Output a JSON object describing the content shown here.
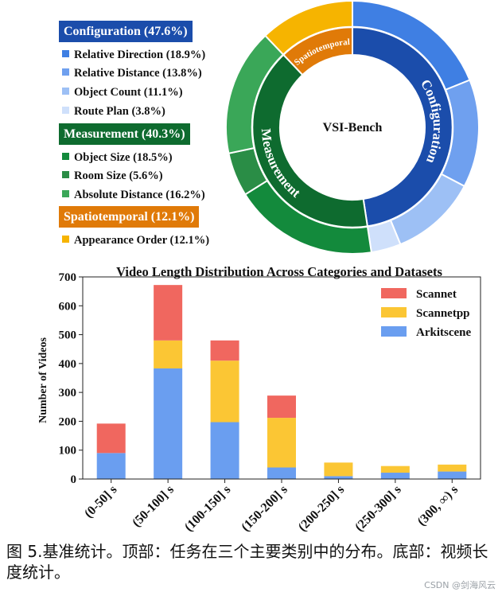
{
  "donut": {
    "center_label": "VSI-Bench",
    "groups": [
      {
        "name": "Configuration (47.6%)",
        "ring_label": "Configuration",
        "color": "#1b4dab",
        "items": [
          {
            "label": "Relative Direction (18.9%)",
            "value": 18.9,
            "color": "#3f7fe3"
          },
          {
            "label": "Relative Distance (13.8%)",
            "value": 13.8,
            "color": "#6fa0ef"
          },
          {
            "label": "Object Count (11.1%)",
            "value": 11.1,
            "color": "#9dc0f5"
          },
          {
            "label": "Route Plan (3.8%)",
            "value": 3.8,
            "color": "#cfe0fb"
          }
        ]
      },
      {
        "name": "Measurement (40.3%)",
        "ring_label": "Measurement",
        "color": "#0e6b2f",
        "items": [
          {
            "label": "Object Size (18.5%)",
            "value": 18.5,
            "color": "#138a3c"
          },
          {
            "label": "Room Size (5.6%)",
            "value": 5.6,
            "color": "#2a8d46"
          },
          {
            "label": "Absolute Distance (16.2%)",
            "value": 16.2,
            "color": "#3aa758"
          }
        ]
      },
      {
        "name": "Spatiotemporal (12.1%)",
        "ring_label": "Spatiotemporal",
        "color": "#e07a08",
        "items": [
          {
            "label": "Appearance Order (12.1%)",
            "value": 12.1,
            "color": "#f6b400"
          }
        ]
      }
    ]
  },
  "chart_data": {
    "type": "bar",
    "stacked": true,
    "title": "Video Length Distribution Across Categories and Datasets",
    "xlabel": "",
    "ylabel": "Number of Videos",
    "ylim": [
      0,
      700
    ],
    "yticks": [
      "0",
      "100",
      "200",
      "300",
      "400",
      "500",
      "600",
      "700"
    ],
    "categories": [
      "(0-50] s",
      "(50-100] s",
      "(100-150] s",
      "(150-200] s",
      "(200-250] s",
      "(250-300] s",
      "(300, ∞) s"
    ],
    "series": [
      {
        "name": "Arkitscene",
        "color": "#6a9ef0",
        "values": [
          90,
          383,
          197,
          40,
          10,
          22,
          26
        ]
      },
      {
        "name": "Scannetpp",
        "color": "#fbc634",
        "values": [
          0,
          97,
          213,
          172,
          47,
          23,
          24
        ]
      },
      {
        "name": "Scannet",
        "color": "#f0675f",
        "values": [
          102,
          192,
          70,
          77,
          0,
          0,
          0
        ]
      }
    ],
    "legend": [
      "Scannet",
      "Scannetpp",
      "Arkitscene"
    ],
    "legend_position": "top-right",
    "grid": false
  },
  "caption": "图 5.基准统计。顶部：任务在三个主要类别中的分布。底部：视频长度统计。",
  "watermark": "CSDN @剑海风云"
}
